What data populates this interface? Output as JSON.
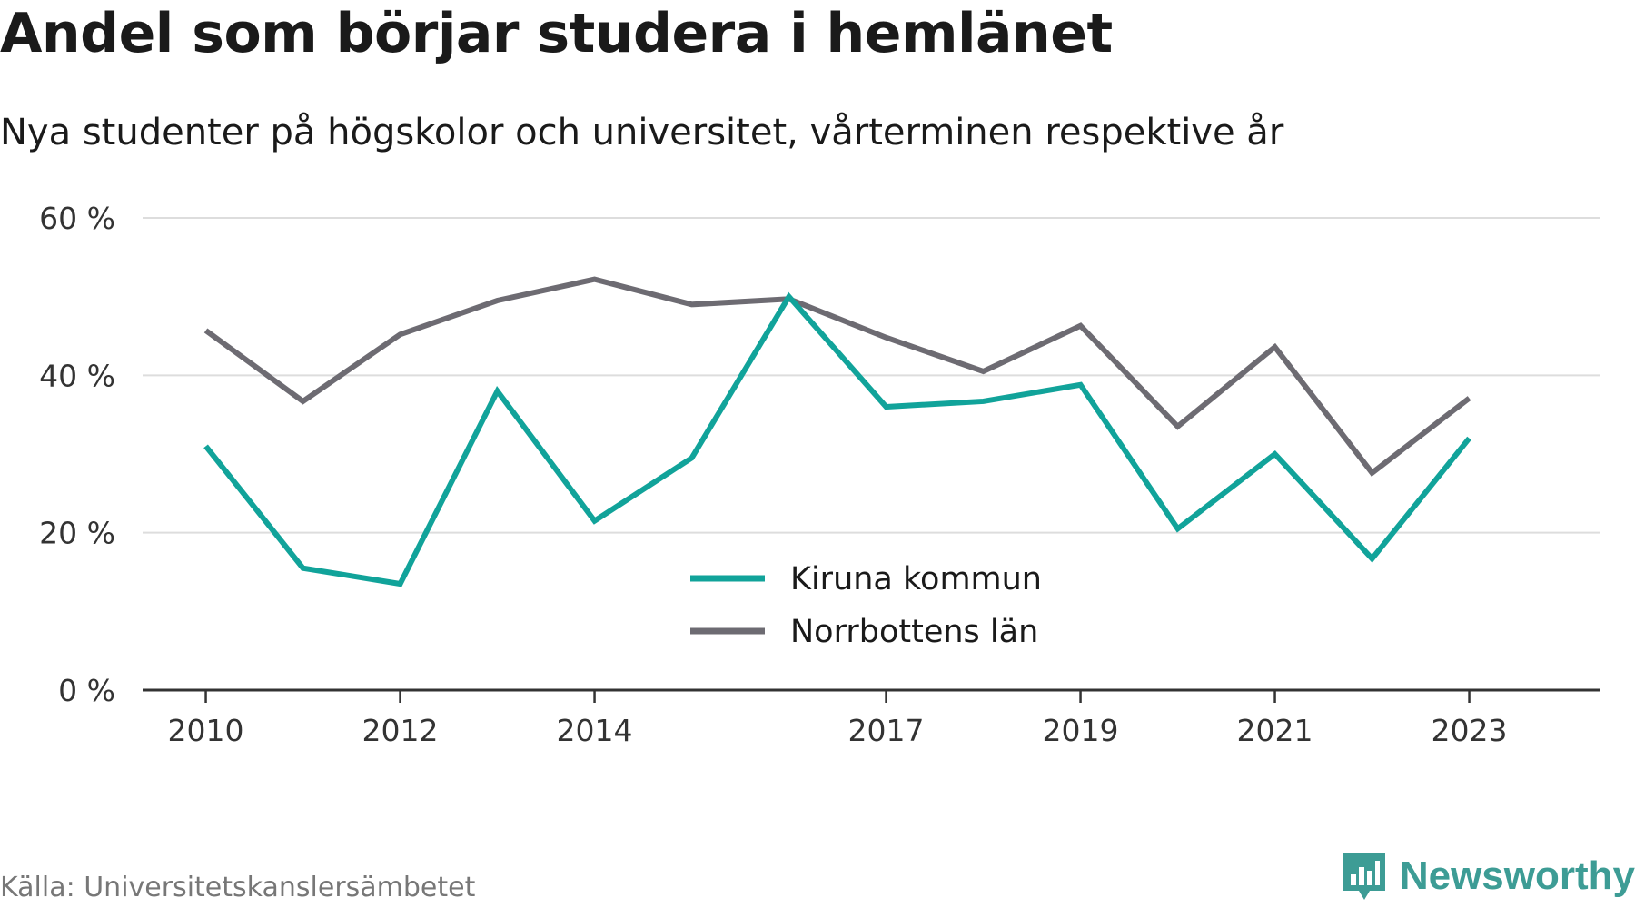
{
  "header": {
    "title": "Andel som börjar studera i hemlänet",
    "subtitle": "Nya studenter på högskolor och universitet, vårterminen respektive år"
  },
  "footer": {
    "source": "Källa: Universitetskanslersämbetet",
    "brand": "Newsworthy",
    "brand_icon": "bar-chart-badge-icon"
  },
  "colors": {
    "kiruna": "#11a39a",
    "norrbotten": "#6d6b72",
    "grid": "#dddddd",
    "axis": "#333333",
    "brand": "#3d9c95"
  },
  "chart_data": {
    "type": "line",
    "title": "Andel som börjar studera i hemlänet",
    "subtitle": "Nya studenter på högskolor och universitet, vårterminen respektive år",
    "x": [
      2010,
      2011,
      2012,
      2013,
      2014,
      2015,
      2016,
      2017,
      2018,
      2019,
      2020,
      2021,
      2022,
      2023
    ],
    "series": [
      {
        "name": "Kiruna kommun",
        "values": [
          31,
          15.5,
          13.5,
          38,
          21.5,
          29.5,
          50,
          36,
          36.7,
          38.8,
          20.5,
          30,
          16.7,
          32
        ]
      },
      {
        "name": "Norrbottens län",
        "values": [
          45.7,
          36.7,
          45.2,
          49.5,
          52.2,
          49,
          49.7,
          44.8,
          40.5,
          46.3,
          33.5,
          43.6,
          27.6,
          37.1
        ]
      }
    ],
    "ylim": [
      0,
      60
    ],
    "yticks": [
      0,
      20,
      40,
      60
    ],
    "ytick_labels": [
      "0 %",
      "20 %",
      "40 %",
      "60 %"
    ],
    "xticks": [
      2010,
      2012,
      2014,
      2017,
      2019,
      2021,
      2023
    ],
    "xtick_labels": [
      "2010",
      "2012",
      "2014",
      "2017",
      "2019",
      "2021",
      "2023"
    ],
    "legend": {
      "position": "bottom-center-inside"
    },
    "grid": true
  }
}
